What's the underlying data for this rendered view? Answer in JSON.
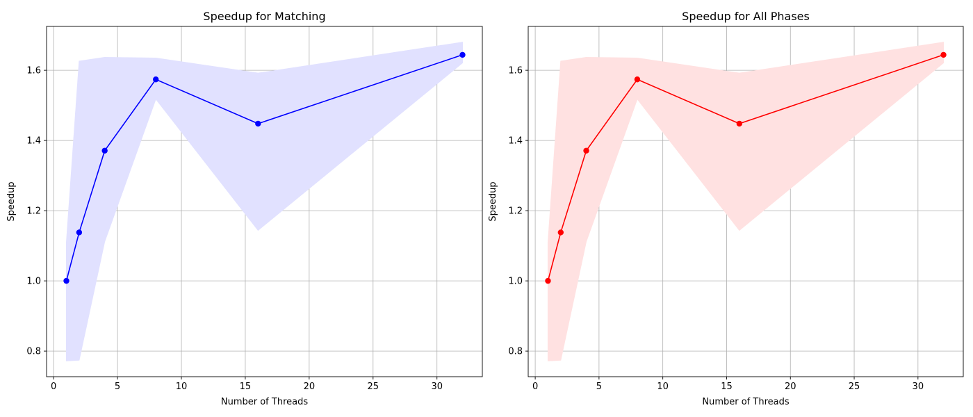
{
  "chart_data": [
    {
      "type": "line",
      "title": "Speedup for Matching",
      "xlabel": "Number of Threads",
      "ylabel": "Speedup",
      "xlim": [
        -0.55,
        33.55
      ],
      "ylim": [
        0.727,
        1.725
      ],
      "xticks": [
        0,
        5,
        10,
        15,
        20,
        25,
        30
      ],
      "yticks": [
        0.8,
        1.0,
        1.2,
        1.4,
        1.6
      ],
      "ytick_labels": [
        "0.8",
        "1.0",
        "1.2",
        "1.4",
        "1.6"
      ],
      "grid": true,
      "series": [
        {
          "x": [
            1,
            2,
            4,
            8,
            16,
            32
          ],
          "values": [
            1.0,
            1.138,
            1.371,
            1.574,
            1.448,
            1.644
          ],
          "color": "#0000ff",
          "marker": "circle",
          "band_upper": [
            1.11,
            1.626,
            1.637,
            1.635,
            1.592,
            1.68
          ],
          "band_lower": [
            0.772,
            0.774,
            1.112,
            1.518,
            1.144,
            1.621
          ],
          "band_color": "#e1e1ff"
        }
      ]
    },
    {
      "type": "line",
      "title": "Speedup for All Phases",
      "xlabel": "Number of Threads",
      "ylabel": "Speedup",
      "xlim": [
        -0.55,
        33.55
      ],
      "ylim": [
        0.727,
        1.725
      ],
      "xticks": [
        0,
        5,
        10,
        15,
        20,
        25,
        30
      ],
      "yticks": [
        0.8,
        1.0,
        1.2,
        1.4,
        1.6
      ],
      "ytick_labels": [
        "0.8",
        "1.0",
        "1.2",
        "1.4",
        "1.6"
      ],
      "grid": true,
      "series": [
        {
          "x": [
            1,
            2,
            4,
            8,
            16,
            32
          ],
          "values": [
            1.0,
            1.138,
            1.371,
            1.574,
            1.448,
            1.644
          ],
          "color": "#ff0000",
          "marker": "circle",
          "band_upper": [
            1.11,
            1.626,
            1.637,
            1.635,
            1.592,
            1.68
          ],
          "band_lower": [
            0.772,
            0.774,
            1.112,
            1.518,
            1.144,
            1.621
          ],
          "band_color": "#ffe1e1"
        }
      ]
    }
  ]
}
